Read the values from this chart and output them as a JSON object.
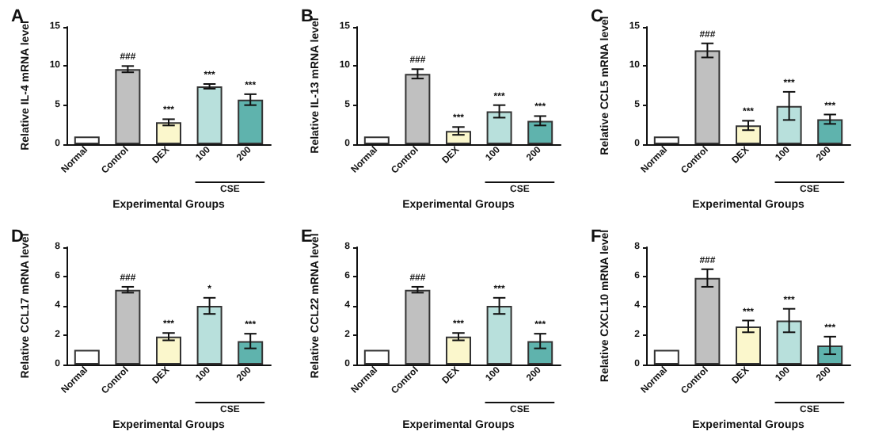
{
  "chart_data": [
    {
      "type": "bar",
      "title": "A",
      "ylabel": "Relative IL-4 mRNA level",
      "xlabel": "Experimental Groups",
      "categories": [
        "Normal",
        "Control",
        "DEX",
        "100",
        "200"
      ],
      "values": [
        1,
        9.6,
        2.8,
        7.4,
        5.7
      ],
      "errors": [
        null,
        0.4,
        0.4,
        0.3,
        0.7
      ],
      "colors": [
        "#ffffff",
        "#c0c0c0",
        "#fbf7cc",
        "#b8e0dc",
        "#5fb3ad"
      ],
      "value_labels": [
        null,
        "###",
        "***",
        "***",
        "***"
      ],
      "ylim": [
        0,
        15
      ],
      "yticks": [
        0,
        5,
        10,
        15
      ],
      "annotations": [
        "CSE"
      ]
    },
    {
      "type": "bar",
      "title": "B",
      "ylabel": "Relative IL-13 mRNA level",
      "xlabel": "Experimental Groups",
      "categories": [
        "Normal",
        "Control",
        "DEX",
        "100",
        "200"
      ],
      "values": [
        1,
        9.0,
        1.7,
        4.2,
        3.0
      ],
      "errors": [
        null,
        0.6,
        0.5,
        0.8,
        0.6
      ],
      "colors": [
        "#ffffff",
        "#c0c0c0",
        "#fbf7cc",
        "#b8e0dc",
        "#5fb3ad"
      ],
      "value_labels": [
        null,
        "###",
        "***",
        "***",
        "***"
      ],
      "ylim": [
        0,
        15
      ],
      "yticks": [
        0,
        5,
        10,
        15
      ],
      "annotations": [
        "CSE"
      ]
    },
    {
      "type": "bar",
      "title": "C",
      "ylabel": "Relative CCL5 mRNA level",
      "xlabel": "Experimental Groups",
      "categories": [
        "Normal",
        "Control",
        "DEX",
        "100",
        "200"
      ],
      "values": [
        1,
        12.0,
        2.4,
        4.9,
        3.2
      ],
      "errors": [
        null,
        0.9,
        0.6,
        1.8,
        0.6
      ],
      "colors": [
        "#ffffff",
        "#c0c0c0",
        "#fbf7cc",
        "#b8e0dc",
        "#5fb3ad"
      ],
      "value_labels": [
        null,
        "###",
        "***",
        "***",
        "***"
      ],
      "ylim": [
        0,
        15
      ],
      "yticks": [
        0,
        5,
        10,
        15
      ],
      "annotations": [
        "CSE"
      ]
    },
    {
      "type": "bar",
      "title": "D",
      "ylabel": "Relative CCL17 mRNA level",
      "xlabel": "Experimental Groups",
      "categories": [
        "Normal",
        "Control",
        "DEX",
        "100",
        "200"
      ],
      "values": [
        1,
        5.1,
        1.9,
        4.0,
        1.6
      ],
      "errors": [
        null,
        0.2,
        0.25,
        0.55,
        0.5
      ],
      "colors": [
        "#ffffff",
        "#c0c0c0",
        "#fbf7cc",
        "#b8e0dc",
        "#5fb3ad"
      ],
      "value_labels": [
        null,
        "###",
        "***",
        "*",
        "***"
      ],
      "ylim": [
        0,
        8
      ],
      "yticks": [
        0,
        2,
        4,
        6,
        8
      ],
      "annotations": [
        "CSE"
      ]
    },
    {
      "type": "bar",
      "title": "E",
      "ylabel": "Relative CCL22 mRNA level",
      "xlabel": "Experimental Groups",
      "categories": [
        "Normal",
        "Control",
        "DEX",
        "100",
        "200"
      ],
      "values": [
        1,
        5.1,
        1.9,
        4.0,
        1.6
      ],
      "errors": [
        null,
        0.2,
        0.25,
        0.55,
        0.5
      ],
      "colors": [
        "#ffffff",
        "#c0c0c0",
        "#fbf7cc",
        "#b8e0dc",
        "#5fb3ad"
      ],
      "value_labels": [
        null,
        "###",
        "***",
        "***",
        "***"
      ],
      "ylim": [
        0,
        8
      ],
      "yticks": [
        0,
        2,
        4,
        6,
        8
      ],
      "annotations": [
        "CSE"
      ]
    },
    {
      "type": "bar",
      "title": "F",
      "ylabel": "Relative CXCL10 mRNA level",
      "xlabel": "Experimental Groups",
      "categories": [
        "Normal",
        "Control",
        "DEX",
        "100",
        "200"
      ],
      "values": [
        1,
        5.9,
        2.6,
        3.0,
        1.3
      ],
      "errors": [
        null,
        0.6,
        0.4,
        0.8,
        0.6
      ],
      "colors": [
        "#ffffff",
        "#c0c0c0",
        "#fbf7cc",
        "#b8e0dc",
        "#5fb3ad"
      ],
      "value_labels": [
        null,
        "###",
        "***",
        "***",
        "***"
      ],
      "ylim": [
        0,
        8
      ],
      "yticks": [
        0,
        2,
        4,
        6,
        8
      ],
      "annotations": [
        "CSE"
      ]
    }
  ]
}
